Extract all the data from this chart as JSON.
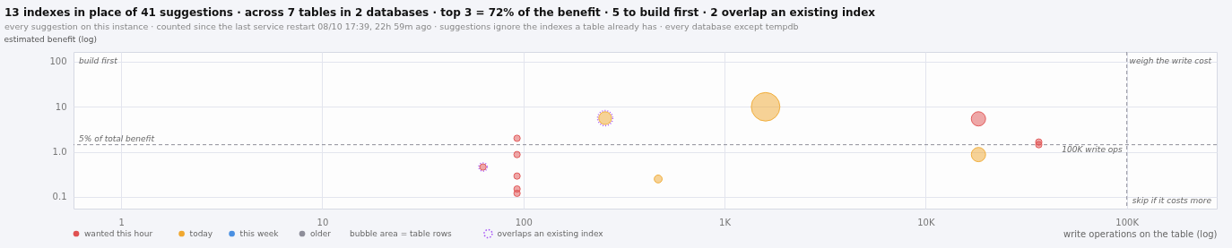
{
  "chart_data": {
    "type": "bubble",
    "title": "13 indexes in place of 41 suggestions   ·   across 7 tables in 2 databases   ·   top 3 = 72% of the benefit   ·   5 to build first   ·   2 overlap an existing index",
    "subtitle": "every suggestion on this instance  ·  counted since the last service restart 08/10 17:39, 22h 59m ago  ·  suggestions ignore the indexes a table already has  ·  every database except tempdb",
    "xlabel": "write operations on the table (log)",
    "ylabel": "estimated benefit (log)",
    "log": "xy",
    "grid": true,
    "legend": "bottom",
    "xlim": [
      0.58,
      280000
    ],
    "xticks": [
      {
        "value": 1,
        "label": "1"
      },
      {
        "value": 10,
        "label": "10"
      },
      {
        "value": 100,
        "label": "100"
      },
      {
        "value": 1000,
        "label": "1K"
      },
      {
        "value": 10000,
        "label": "10K"
      },
      {
        "value": 100000,
        "label": "100K"
      }
    ],
    "ylim": [
      0.055,
      165
    ],
    "yticks": [
      {
        "value": 0.1,
        "label": "0.1"
      },
      {
        "value": 1,
        "label": "1.0"
      },
      {
        "value": 10,
        "label": "10"
      },
      {
        "value": 100,
        "label": "100"
      }
    ],
    "series": [
      {
        "name": "wanted this hour",
        "color": "#e05252",
        "x": [
          63,
          93,
          93,
          93,
          93,
          93,
          18300,
          36500,
          36500
        ],
        "values": [
          0.46,
          2.0,
          0.87,
          0.29,
          0.15,
          0.12,
          5.4,
          1.65,
          1.44
        ],
        "sizes": [
          0.05,
          0.05,
          0.05,
          0.05,
          0.05,
          0.05,
          0.25,
          0.05,
          0.05
        ]
      },
      {
        "name": "today",
        "color": "#f0a830",
        "x": [
          255,
          468,
          1600,
          18300
        ],
        "values": [
          5.6,
          0.25,
          10,
          0.87
        ],
        "sizes": [
          0.2,
          0.077,
          1,
          0.25
        ]
      },
      {
        "name": "this week",
        "color": "#4a90e2"
      },
      {
        "name": "older",
        "color": "#8e8e9a"
      },
      {
        "name": "overlaps an existing index",
        "color": "#a855f7",
        "line_style": "dotted",
        "x": [
          63,
          255
        ],
        "values": [
          0.46,
          5.6
        ],
        "sizes": [
          0.085,
          0.28
        ]
      }
    ],
    "ref_lines": [
      {
        "axis": "y",
        "value": 1.44,
        "label": "5% of total benefit",
        "line_style": "dashed",
        "color": "#8e8e9a"
      },
      {
        "axis": "x",
        "value": 100000,
        "label": "100K write ops",
        "line_style": "dashed",
        "color": "#8e8e9a"
      }
    ],
    "annotations": [
      "build first",
      "weigh the write cost",
      "skip if it costs more",
      "bubble area = table rows"
    ]
  }
}
